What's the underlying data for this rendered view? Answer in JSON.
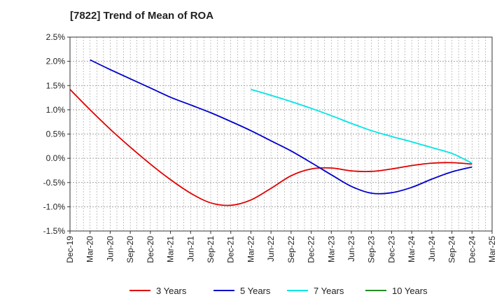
{
  "chart_data": {
    "type": "line",
    "title": "[7822]  Trend of Mean of ROA",
    "xlabel": "",
    "ylabel": "",
    "ylim": [
      -1.5,
      2.5
    ],
    "y_ticks": [
      "2.5%",
      "2.0%",
      "1.5%",
      "1.0%",
      "0.5%",
      "0.0%",
      "-0.5%",
      "-1.0%",
      "-1.5%"
    ],
    "x_ticks": [
      "Dec-19",
      "Mar-20",
      "Jun-20",
      "Sep-20",
      "Dec-20",
      "Mar-21",
      "Jun-21",
      "Sep-21",
      "Dec-21",
      "Mar-22",
      "Jun-22",
      "Sep-22",
      "Dec-22",
      "Mar-23",
      "Jun-23",
      "Sep-23",
      "Dec-23",
      "Mar-24",
      "Jun-24",
      "Sep-24",
      "Dec-24",
      "Mar-25"
    ],
    "grid": true,
    "legend_position": "bottom",
    "series": [
      {
        "name": "3 Years",
        "color": "#e00000",
        "x": [
          "Dec-19",
          "Mar-20",
          "Jun-20",
          "Sep-20",
          "Dec-20",
          "Mar-21",
          "Jun-21",
          "Sep-21",
          "Dec-21",
          "Mar-22",
          "Jun-22",
          "Sep-22",
          "Dec-22",
          "Mar-23",
          "Jun-23",
          "Sep-23",
          "Dec-23",
          "Mar-24",
          "Jun-24",
          "Sep-24",
          "Dec-24"
        ],
        "values": [
          1.42,
          1.0,
          0.6,
          0.23,
          -0.12,
          -0.44,
          -0.72,
          -0.92,
          -0.97,
          -0.86,
          -0.62,
          -0.36,
          -0.22,
          -0.2,
          -0.26,
          -0.27,
          -0.22,
          -0.15,
          -0.1,
          -0.09,
          -0.12
        ]
      },
      {
        "name": "5 Years",
        "color": "#0000cc",
        "x": [
          "Mar-20",
          "Jun-20",
          "Sep-20",
          "Dec-20",
          "Mar-21",
          "Jun-21",
          "Sep-21",
          "Dec-21",
          "Mar-22",
          "Jun-22",
          "Sep-22",
          "Dec-22",
          "Mar-23",
          "Jun-23",
          "Sep-23",
          "Dec-23",
          "Mar-24",
          "Jun-24",
          "Sep-24",
          "Dec-24"
        ],
        "values": [
          2.03,
          1.83,
          1.64,
          1.45,
          1.26,
          1.1,
          0.94,
          0.76,
          0.57,
          0.36,
          0.15,
          -0.09,
          -0.34,
          -0.58,
          -0.72,
          -0.71,
          -0.6,
          -0.43,
          -0.28,
          -0.18
        ]
      },
      {
        "name": "7 Years",
        "color": "#00e5e5",
        "x": [
          "Mar-22",
          "Jun-22",
          "Sep-22",
          "Dec-22",
          "Mar-23",
          "Jun-23",
          "Sep-23",
          "Dec-23",
          "Mar-24",
          "Jun-24",
          "Sep-24",
          "Dec-24"
        ],
        "values": [
          1.42,
          1.3,
          1.17,
          1.03,
          0.88,
          0.72,
          0.57,
          0.45,
          0.34,
          0.22,
          0.1,
          -0.1
        ]
      },
      {
        "name": "10 Years",
        "color": "#228b22",
        "x": [],
        "values": []
      }
    ]
  }
}
